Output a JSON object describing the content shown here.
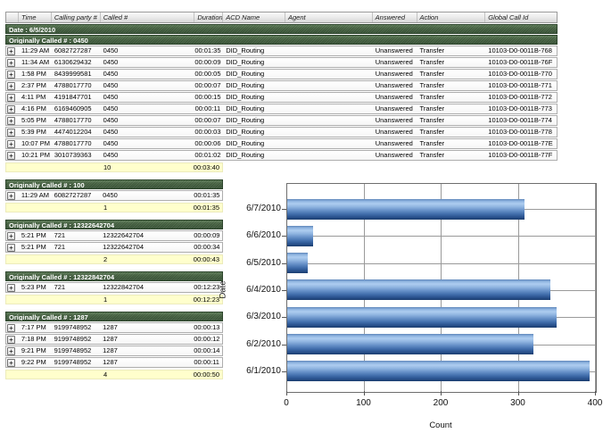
{
  "table": {
    "expand_glyph": "+",
    "columns": [
      "",
      "Time",
      "Calling party #",
      "Called #",
      "Duration",
      "ACD Name",
      "Agent",
      "Answered",
      "Action",
      "Global Call Id"
    ],
    "date_header": "Date : 6/5/2010",
    "groups": [
      {
        "title": "Originally Called # : 0450",
        "full_width": true,
        "rows": [
          {
            "time": "11:29 AM",
            "calling_party": "6082727287",
            "called": "0450",
            "duration": "00:01:35",
            "acd_name": "DID_Routing",
            "agent": "",
            "answered": "Unanswered",
            "action": "Transfer",
            "global_call_id": "10103-D0-0011B-768"
          },
          {
            "time": "11:34 AM",
            "calling_party": "6130629432",
            "called": "0450",
            "duration": "00:00:09",
            "acd_name": "DID_Routing",
            "agent": "",
            "answered": "Unanswered",
            "action": "Transfer",
            "global_call_id": "10103-D0-0011B-76F"
          },
          {
            "time": "1:58 PM",
            "calling_party": "8439999581",
            "called": "0450",
            "duration": "00:00:05",
            "acd_name": "DID_Routing",
            "agent": "",
            "answered": "Unanswered",
            "action": "Transfer",
            "global_call_id": "10103-D0-0011B-770"
          },
          {
            "time": "2:37 PM",
            "calling_party": "4788017770",
            "called": "0450",
            "duration": "00:00:07",
            "acd_name": "DID_Routing",
            "agent": "",
            "answered": "Unanswered",
            "action": "Transfer",
            "global_call_id": "10103-D0-0011B-771"
          },
          {
            "time": "4:11 PM",
            "calling_party": "4191847701",
            "called": "0450",
            "duration": "00:00:15",
            "acd_name": "DID_Routing",
            "agent": "",
            "answered": "Unanswered",
            "action": "Transfer",
            "global_call_id": "10103-D0-0011B-772"
          },
          {
            "time": "4:16 PM",
            "calling_party": "6169460905",
            "called": "0450",
            "duration": "00:00:11",
            "acd_name": "DID_Routing",
            "agent": "",
            "answered": "Unanswered",
            "action": "Transfer",
            "global_call_id": "10103-D0-0011B-773"
          },
          {
            "time": "5:05 PM",
            "calling_party": "4788017770",
            "called": "0450",
            "duration": "00:00:07",
            "acd_name": "DID_Routing",
            "agent": "",
            "answered": "Unanswered",
            "action": "Transfer",
            "global_call_id": "10103-D0-0011B-774"
          },
          {
            "time": "5:39 PM",
            "calling_party": "4474012204",
            "called": "0450",
            "duration": "00:00:03",
            "acd_name": "DID_Routing",
            "agent": "",
            "answered": "Unanswered",
            "action": "Transfer",
            "global_call_id": "10103-D0-0011B-778"
          },
          {
            "time": "10:07 PM",
            "calling_party": "4788017770",
            "called": "0450",
            "duration": "00:00:06",
            "acd_name": "DID_Routing",
            "agent": "",
            "answered": "Unanswered",
            "action": "Transfer",
            "global_call_id": "10103-D0-0011B-77E"
          },
          {
            "time": "10:21 PM",
            "calling_party": "3010739363",
            "called": "0450",
            "duration": "00:01:02",
            "acd_name": "DID_Routing",
            "agent": "",
            "answered": "Unanswered",
            "action": "Transfer",
            "global_call_id": "10103-D0-0011B-77F"
          }
        ],
        "summary": {
          "count": "10",
          "total_duration": "00:03:40"
        }
      },
      {
        "title": "Originally Called # : 100",
        "full_width": false,
        "rows": [
          {
            "time": "11:29 AM",
            "calling_party": "6082727287",
            "called": "0450",
            "duration": "00:01:35"
          }
        ],
        "summary": {
          "count": "1",
          "total_duration": "00:01:35"
        }
      },
      {
        "title": "Originally Called # : 12322642704",
        "full_width": false,
        "rows": [
          {
            "time": "5:21 PM",
            "calling_party": "721",
            "called": "12322642704",
            "duration": "00:00:09"
          },
          {
            "time": "5:21 PM",
            "calling_party": "721",
            "called": "12322642704",
            "duration": "00:00:34"
          }
        ],
        "summary": {
          "count": "2",
          "total_duration": "00:00:43"
        }
      },
      {
        "title": "Originally Called # : 12322842704",
        "full_width": false,
        "rows": [
          {
            "time": "5:23 PM",
            "calling_party": "721",
            "called": "12322842704",
            "duration": "00:12:23"
          }
        ],
        "summary": {
          "count": "1",
          "total_duration": "00:12:23"
        }
      },
      {
        "title": "Originally Called # : 1287",
        "full_width": false,
        "rows": [
          {
            "time": "7:17 PM",
            "calling_party": "9199748952",
            "called": "1287",
            "duration": "00:00:13"
          },
          {
            "time": "7:18 PM",
            "calling_party": "9199748952",
            "called": "1287",
            "duration": "00:00:12"
          },
          {
            "time": "9:21 PM",
            "calling_party": "9199748952",
            "called": "1287",
            "duration": "00:00:14"
          },
          {
            "time": "9:22 PM",
            "calling_party": "9199748952",
            "called": "1287",
            "duration": "00:00:11"
          }
        ],
        "summary": {
          "count": "4",
          "total_duration": "00:00:50"
        }
      }
    ]
  },
  "chart_data": {
    "type": "bar",
    "orientation": "horizontal",
    "categories": [
      "6/7/2010",
      "6/6/2010",
      "6/5/2010",
      "6/4/2010",
      "6/3/2010",
      "6/2/2010",
      "6/1/2010"
    ],
    "values": [
      308,
      33,
      27,
      341,
      349,
      319,
      392
    ],
    "title": "",
    "xlabel": "Count",
    "ylabel": "Date",
    "xlim": [
      0,
      400
    ],
    "xticks": [
      0,
      100,
      200,
      300,
      400
    ],
    "grid": true,
    "legend": false,
    "bar_color_top": "#aecdf0",
    "bar_color_bottom": "#1c3d6e"
  },
  "colors": {
    "group_header_bg": "#44603f",
    "group_header_text": "#ffffff",
    "summary_bg": "#ffffcc",
    "grid_header_bg": "#e8e8e8",
    "bar_blue": "#4370ad"
  }
}
